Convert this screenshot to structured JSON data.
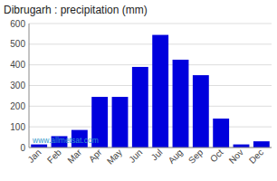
{
  "chart_data": {
    "type": "bar",
    "title": "Dibrugarh : precipitation (mm)",
    "categories": [
      "Jan",
      "Feb",
      "Mar",
      "Apr",
      "May",
      "Jun",
      "Jul",
      "Aug",
      "Sep",
      "Oct",
      "Nov",
      "Dec"
    ],
    "values": [
      15,
      55,
      85,
      245,
      245,
      390,
      545,
      425,
      350,
      140,
      15,
      30
    ],
    "color": "#0000dd",
    "ylim": [
      0,
      600
    ],
    "yticks": [
      0,
      100,
      200,
      300,
      400,
      500,
      600
    ],
    "grid": true,
    "annotations": [
      {
        "text": "www.allmetsat.com",
        "color": "#3399cc"
      }
    ]
  }
}
